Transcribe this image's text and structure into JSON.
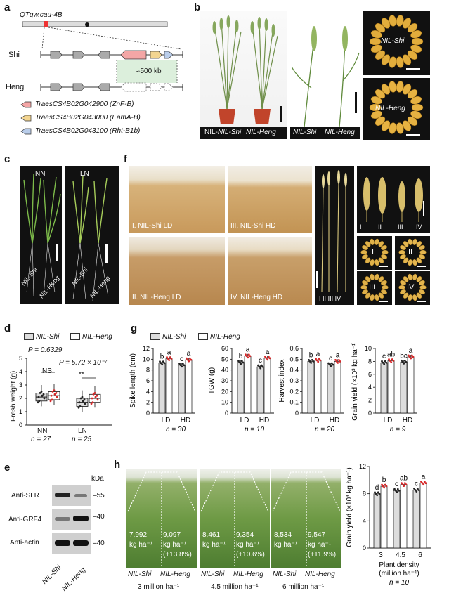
{
  "panels": {
    "a": "a",
    "b": "b",
    "c": "c",
    "d": "d",
    "e": "e",
    "f": "f",
    "g": "g",
    "h": "h"
  },
  "a": {
    "locus": "QTgw.cau-4B",
    "shi": "Shi",
    "heng": "Heng",
    "deletion": "≈500 kb",
    "genes": [
      {
        "id": "TraesCS4B02G042900",
        "name": "(ZnF-B)",
        "color": "#f4a6a6"
      },
      {
        "id": "TraesCS4B02G043000",
        "name": "(EamA-B)",
        "color": "#f3d591"
      },
      {
        "id": "TraesCS4B02G043100",
        "name": "(Rht-B1b)",
        "color": "#b9cdea"
      }
    ]
  },
  "b": {
    "labels": [
      "NIL-Shi",
      "NIL-Heng",
      "NIL-Shi",
      "NIL-Heng"
    ],
    "grain_shi": "NIL-Shi",
    "grain_heng": "NIL-Heng"
  },
  "c": {
    "nn": "NN",
    "ln": "LN",
    "labels": [
      "NIL-Shi",
      "NIL-Heng",
      "NIL-Shi",
      "NIL-Heng"
    ]
  },
  "d": {
    "legend": [
      "NIL-Shi",
      "NIL-Heng"
    ],
    "p_nn": "P = 0.6329",
    "p_ln": "P = 5.72 × 10⁻⁷",
    "sig_nn": "NS",
    "sig_ln": "**",
    "ylabel": "Fresh weight (g)",
    "yticks": [
      "0",
      "1",
      "2",
      "3",
      "4",
      "5"
    ],
    "groups": [
      "NN",
      "LN"
    ],
    "ns": [
      "n = 27",
      "n = 25"
    ]
  },
  "e": {
    "kda": "kDa",
    "rows": [
      {
        "label": "Anti-SLR",
        "marker": "55"
      },
      {
        "label": "Anti-GRF4",
        "marker": "40"
      },
      {
        "label": "Anti-actin",
        "marker": "40"
      }
    ],
    "lanes": [
      "NIL-Shi",
      "NIL-Heng"
    ]
  },
  "f": {
    "plots": [
      "I. NIL-Shi LD",
      "III. NIL-Shi HD",
      "II. NIL-Heng LD",
      "IV. NIL-Heng HD"
    ],
    "roman": [
      "I",
      "II",
      "III",
      "IV"
    ]
  },
  "g": {
    "legend": [
      "NIL-Shi",
      "NIL-Heng"
    ],
    "charts": [
      {
        "ylabel": "Spike length (cm)",
        "yticks": [
          "0",
          "2",
          "4",
          "6",
          "8",
          "10",
          "12"
        ],
        "letters": [
          "b",
          "a",
          "c",
          "a"
        ],
        "n": "n = 30"
      },
      {
        "ylabel": "TGW (g)",
        "yticks": [
          "0",
          "10",
          "20",
          "30",
          "40",
          "50",
          "60"
        ],
        "letters": [
          "b",
          "a",
          "c",
          "a"
        ],
        "n": "n = 10"
      },
      {
        "ylabel": "Harvest index",
        "yticks": [
          "0",
          "0.1",
          "0.2",
          "0.3",
          "0.4",
          "0.5",
          "0.6"
        ],
        "letters": [
          "b",
          "a",
          "c",
          "a"
        ],
        "n": "n = 20"
      },
      {
        "ylabel": "Grain yield (×10³ kg ha⁻¹)",
        "yticks": [
          "0",
          "2",
          "4",
          "6",
          "8",
          "10"
        ],
        "letters": [
          "c",
          "ab",
          "bc",
          "a"
        ],
        "n": "n = 9"
      }
    ],
    "xcats": [
      "LD",
      "HD"
    ]
  },
  "h": {
    "plots": [
      {
        "shi": "7,992",
        "heng": "9,097",
        "pct": "(+13.8%)",
        "density": "3 million ha⁻¹"
      },
      {
        "shi": "8,461",
        "heng": "9,354",
        "pct": "(+10.6%)",
        "density": "4.5 million ha⁻¹"
      },
      {
        "shi": "8,534",
        "heng": "9,547",
        "pct": "(+11.9%)",
        "density": "6 million ha⁻¹"
      }
    ],
    "unit": "kg ha⁻¹",
    "shi_label": "NIL-Shi",
    "heng_label": "NIL-Heng",
    "chart": {
      "ylabel": "Grain yield (×10³ kg ha⁻¹)",
      "yticks": [
        "0",
        "4",
        "8",
        "12"
      ],
      "xcats": [
        "3",
        "4.5",
        "6"
      ],
      "letters": [
        "d",
        "b",
        "c",
        "ab",
        "c",
        "a"
      ],
      "xlabel1": "Plant density",
      "xlabel2": "(million ha⁻¹)",
      "n": "n = 10"
    }
  },
  "chart_data": [
    {
      "type": "box",
      "ylabel": "Fresh weight (g)",
      "categories": [
        "NN",
        "LN"
      ],
      "ylim": [
        0,
        5
      ],
      "series": [
        {
          "name": "NIL-Shi",
          "values": [
            2.1,
            1.7
          ]
        },
        {
          "name": "NIL-Heng",
          "values": [
            2.2,
            2.0
          ]
        }
      ]
    },
    {
      "type": "bar",
      "ylabel": "Spike length (cm)",
      "categories": [
        "LD",
        "HD"
      ],
      "ylim": [
        0,
        12
      ],
      "series": [
        {
          "name": "NIL-Shi",
          "values": [
            9.3,
            8.9
          ]
        },
        {
          "name": "NIL-Heng",
          "values": [
            10.1,
            9.9
          ]
        }
      ]
    },
    {
      "type": "bar",
      "ylabel": "TGW (g)",
      "categories": [
        "LD",
        "HD"
      ],
      "ylim": [
        0,
        60
      ],
      "series": [
        {
          "name": "NIL-Shi",
          "values": [
            47,
            43
          ]
        },
        {
          "name": "NIL-Heng",
          "values": [
            53,
            51
          ]
        }
      ]
    },
    {
      "type": "bar",
      "ylabel": "Harvest index",
      "categories": [
        "LD",
        "HD"
      ],
      "ylim": [
        0,
        0.6
      ],
      "series": [
        {
          "name": "NIL-Shi",
          "values": [
            0.48,
            0.45
          ]
        },
        {
          "name": "NIL-Heng",
          "values": [
            0.49,
            0.48
          ]
        }
      ]
    },
    {
      "type": "bar",
      "ylabel": "Grain yield (×10³ kg ha⁻¹)",
      "categories": [
        "LD",
        "HD"
      ],
      "ylim": [
        0,
        10
      ],
      "series": [
        {
          "name": "NIL-Shi",
          "values": [
            7.8,
            7.9
          ]
        },
        {
          "name": "NIL-Heng",
          "values": [
            8.1,
            8.7
          ]
        }
      ]
    },
    {
      "type": "bar",
      "ylabel": "Grain yield (×10³ kg ha⁻¹)",
      "categories": [
        "3",
        "4.5",
        "6"
      ],
      "ylim": [
        0,
        12
      ],
      "series": [
        {
          "name": "NIL-Shi",
          "values": [
            7.99,
            8.46,
            8.53
          ]
        },
        {
          "name": "NIL-Heng",
          "values": [
            9.1,
            9.35,
            9.55
          ]
        }
      ]
    }
  ]
}
